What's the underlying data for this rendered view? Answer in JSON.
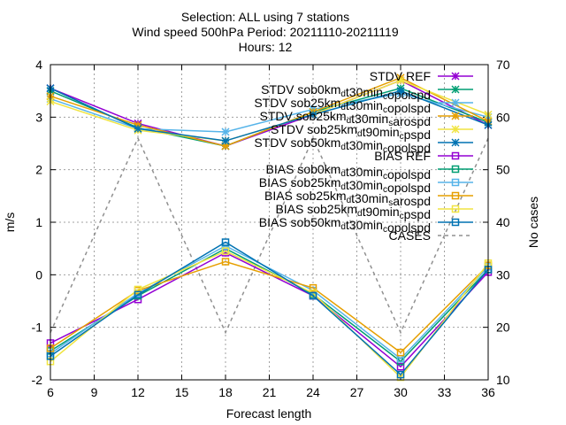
{
  "title_lines": [
    "Selection: ALL using      7 stations",
    "Wind speed 500hPa   Period: 20211110-20211119",
    "Hours: 12"
  ],
  "chart_data": {
    "type": "line",
    "xlabel": "Forecast length",
    "ylabel": "m/s",
    "y2label": "No cases",
    "xlim": [
      6,
      36
    ],
    "ylim": [
      -2,
      4
    ],
    "y2lim": [
      10,
      70
    ],
    "xticks": [
      6,
      9,
      12,
      15,
      18,
      21,
      24,
      27,
      30,
      33,
      36
    ],
    "yticks": [
      -2,
      -1,
      0,
      1,
      2,
      3,
      4
    ],
    "y2ticks": [
      10,
      20,
      30,
      40,
      50,
      60,
      70
    ],
    "grid": true,
    "legend_position": "top-right",
    "x": [
      6,
      12,
      18,
      24,
      30,
      36
    ],
    "series": [
      {
        "name": "STDV REF",
        "base": "STDV REF",
        "sub": "",
        "rest": "",
        "color": "#9400d3",
        "marker": "x",
        "values": [
          3.55,
          2.88,
          2.45,
          3.05,
          3.7,
          2.85
        ]
      },
      {
        "name": "STDV sob0km_d t30min_c opolspd",
        "base": "STDV sob0km",
        "sub": "d",
        "rest": "t30min",
        "sub2": "c",
        "rest2": "opolspd",
        "color": "#009e73",
        "marker": "x",
        "values": [
          3.5,
          2.8,
          2.45,
          3.1,
          3.55,
          2.9
        ]
      },
      {
        "name": "STDV sob25km_d t30min_c opolspd",
        "base": "STDV sob25km",
        "sub": "d",
        "rest": "t30min",
        "sub2": "c",
        "rest2": "opolspd",
        "color": "#56b4e9",
        "marker": "x",
        "values": [
          3.35,
          2.78,
          2.72,
          3.15,
          3.45,
          3.0
        ]
      },
      {
        "name": "STDV sob25km_d t30min_s arospd",
        "base": "STDV sob25km",
        "sub": "d",
        "rest": "t30min",
        "sub2": "s",
        "rest2": "arospd",
        "color": "#e69f00",
        "marker": "x",
        "values": [
          3.4,
          2.85,
          2.45,
          3.1,
          3.75,
          2.92
        ]
      },
      {
        "name": "STDV sob25km_d t90min_c pspd",
        "base": "STDV sob25km",
        "sub": "d",
        "rest": "t90min",
        "sub2": "c",
        "rest2": "pspd",
        "color": "#f0e442",
        "marker": "x",
        "values": [
          3.3,
          2.75,
          2.55,
          3.05,
          3.7,
          3.05
        ]
      },
      {
        "name": "STDV sob50km_d t30min_c opolspd",
        "base": "STDV sob50km",
        "sub": "d",
        "rest": "t30min",
        "sub2": "c",
        "rest2": "opolspd",
        "color": "#0072b2",
        "marker": "x",
        "values": [
          3.55,
          2.78,
          2.55,
          3.05,
          3.5,
          2.85
        ]
      },
      {
        "name": "BIAS REF",
        "base": "BIAS REF",
        "sub": "",
        "rest": "",
        "color": "#9400d3",
        "marker": "square",
        "values": [
          -1.3,
          -0.47,
          0.42,
          -0.4,
          -1.75,
          0.05
        ]
      },
      {
        "name": "BIAS sob0km_d t30min_c opolspd",
        "base": "BIAS sob0km",
        "sub": "d",
        "rest": "t30min",
        "sub2": "c",
        "rest2": "opolspd",
        "color": "#009e73",
        "marker": "square",
        "values": [
          -1.45,
          -0.4,
          0.5,
          -0.37,
          -1.65,
          0.1
        ]
      },
      {
        "name": "BIAS sob25km_d t30min_c opolspd",
        "base": "BIAS sob25km",
        "sub": "d",
        "rest": "t30min",
        "sub2": "c",
        "rest2": "opolspd",
        "color": "#56b4e9",
        "marker": "square",
        "values": [
          -1.5,
          -0.35,
          0.55,
          -0.3,
          -1.6,
          0.15
        ]
      },
      {
        "name": "BIAS sob25km_d t30min_s arospd",
        "base": "BIAS sob25km",
        "sub": "d",
        "rest": "t30min",
        "sub2": "s",
        "rest2": "arospd",
        "color": "#e69f00",
        "marker": "square",
        "values": [
          -1.4,
          -0.3,
          0.25,
          -0.25,
          -1.48,
          0.18
        ]
      },
      {
        "name": "BIAS sob25km_d t90min_c pspd",
        "base": "BIAS sob25km",
        "sub": "d",
        "rest": "t90min",
        "sub2": "c",
        "rest2": "pspd",
        "color": "#f0e442",
        "marker": "square",
        "values": [
          -1.65,
          -0.28,
          0.45,
          -0.35,
          -1.95,
          0.22
        ]
      },
      {
        "name": "BIAS sob50km_d t30min_c opolspd",
        "base": "BIAS sob50km",
        "sub": "d",
        "rest": "t30min",
        "sub2": "c",
        "rest2": "opolspd",
        "color": "#0072b2",
        "marker": "square",
        "values": [
          -1.55,
          -0.38,
          0.62,
          -0.4,
          -1.9,
          0.1
        ]
      },
      {
        "name": "CASES",
        "base": "CASES",
        "sub": "",
        "rest": "",
        "color": "#909090",
        "marker": "none",
        "axis": "y2",
        "dashed": true,
        "values": [
          19,
          56,
          19,
          56,
          19,
          56
        ]
      }
    ]
  }
}
